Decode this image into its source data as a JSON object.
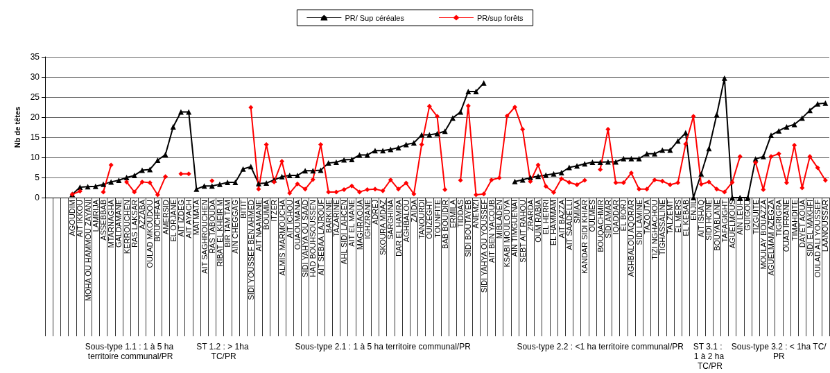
{
  "chart_data": {
    "type": "line",
    "ylabel": "Nb de têtes",
    "categories": [
      null,
      null,
      null,
      "AGOUDIM",
      "AIT IKKOU",
      "MOHA OU HAMMOU ZAYANI",
      "LAMRIJA",
      "ASSEBBAB",
      "MTARNAGHA",
      "GALDAMANE",
      "KERROUCHEN",
      "RAS LAKSAR",
      "AZZABA",
      "OULAD MKOUDOU",
      "BOUCHFAA",
      "AMERSID",
      "EL ORJANE",
      "AIT IZDEG",
      "AIT AYACH",
      "MATMATA",
      "AIT SAGHROUCHEN",
      "RAS TABOUDA",
      "RIBAT EL KHEIR M",
      "BIR TAM TAM",
      "AIN CHEGGAG",
      "BITIT",
      "SIDI YOUSSEF BEN AHMED",
      "AIT NAAMANE",
      "BOUMIA",
      "ITZER",
      "ALMIS MARMOUCHA",
      "AIT ICHOU",
      "OUAOUMANA",
      "SIDI YAHYA OU SAAD",
      "HAD BOUHSOUSSEN",
      "AIT SEBAA LAJROUF",
      "BARKINE",
      "TAZARINE",
      "AHL SIDI LAHCEN",
      "AIT EL MANE",
      "MAGHRAOUA",
      "IGHZRANE",
      "ADREJ",
      "SKOURA MDAZ",
      "SARGHINA",
      "DAR EL HAMRA",
      "AGHBALOU",
      "ZAIDA",
      "TANOURDI",
      "OUIZEGHT",
      "TOUNFITE",
      "BAB BOUIDIR",
      "ERMILA",
      "TIDDAS",
      "SIDI BOUTAYEB",
      "ANEMZI",
      "SIDI YAHYA OU YOUSSEF",
      "AIT BEN YACOUB",
      "MIBLADEN",
      "KSABI MOULOUYA",
      "AIN TIMGUENAI",
      "SEBT AIT RAHOU",
      "ZRARDA",
      "OUM RABIA",
      "EL HERRI",
      "EL HAMMAM",
      "AIT BAZZA",
      "AIT SAADELLI",
      "SMIAA",
      "KANDAR SIDI KHIAR",
      "OULMES",
      "BOUQACHMIR",
      "SIDI AMAR",
      "IQADDAR",
      "EL BORJ",
      "AGHBALOU AQORAR",
      "SIDI LAMINE",
      "TAZOUTA",
      "TIZI NGHACHOU",
      "TIGHASSALINE",
      "TALZEMT",
      "EL MERS",
      "EL KEBAB",
      "ENJIL",
      "AIT ISHAQ",
      "SIDI HCINE",
      "BOUYABLANE",
      "TAFAGIGHT",
      "AGUELMOUS",
      "AIN LEUH",
      "GUIGOU",
      "TIZGUITE",
      "MOULAY BOUAZZA",
      "AGUELMAM AZEGZA",
      "TIGRIGRA",
      "OUAD IFRANE",
      "TIMAHDITE",
      "DAYET AOUA",
      "SIDI EL MAKHFI",
      "OULAD ALI YOUSSEF",
      "LAANOUSSAR"
    ],
    "series": [
      {
        "name": "PR/ Sup céréales",
        "color": "#000000",
        "marker": "triangle",
        "values": [
          null,
          null,
          null,
          0.8,
          2.6,
          2.7,
          2.8,
          3.3,
          3.9,
          4.3,
          5.0,
          5.5,
          6.8,
          7.0,
          9.3,
          10.7,
          17.6,
          21.3,
          21.3,
          2.1,
          2.9,
          2.9,
          3.3,
          3.8,
          3.8,
          7.1,
          7.7,
          3.5,
          3.6,
          4.4,
          5.2,
          5.5,
          5.5,
          6.7,
          6.7,
          6.8,
          8.6,
          8.8,
          9.4,
          9.5,
          10.6,
          10.6,
          11.7,
          11.7,
          12.0,
          12.4,
          13.2,
          13.6,
          15.6,
          15.6,
          15.9,
          16.5,
          19.8,
          21.3,
          26.4,
          26.4,
          28.5,
          null,
          null,
          null,
          4.0,
          4.4,
          5.0,
          5.3,
          5.6,
          5.9,
          6.2,
          7.5,
          7.9,
          8.4,
          8.8,
          8.8,
          8.9,
          8.9,
          9.7,
          9.7,
          9.7,
          10.9,
          10.9,
          11.8,
          11.8,
          14.1,
          16.1,
          0,
          5.9,
          12.2,
          20.6,
          29.7,
          0,
          0,
          0,
          9.6,
          10.2,
          15.5,
          16.6,
          17.6,
          18.2,
          19.8,
          21.7,
          23.3,
          23.5
        ]
      },
      {
        "name": "PR/sup forêts",
        "color": "#ff0000",
        "marker": "diamond",
        "values": [
          null,
          null,
          null,
          0.8,
          1.6,
          null,
          null,
          1.4,
          8.1,
          null,
          3.9,
          1.4,
          3.9,
          3.7,
          0.7,
          5.2,
          null,
          5.9,
          5.9,
          null,
          null,
          4.2,
          null,
          null,
          null,
          null,
          22.4,
          2.1,
          13.2,
          3.9,
          9.0,
          1.1,
          3.4,
          2.1,
          4.5,
          13.2,
          1.4,
          1.4,
          2.0,
          2.9,
          1.4,
          2.0,
          2.1,
          1.7,
          4.4,
          2.1,
          3.6,
          0.9,
          13.2,
          22.7,
          20.2,
          2.0,
          null,
          4.3,
          22.8,
          0.7,
          0.9,
          4.4,
          4.9,
          20.3,
          22.5,
          17.0,
          4.0,
          8.1,
          2.8,
          1.3,
          4.7,
          3.8,
          3.2,
          4.3,
          null,
          7.0,
          17.0,
          3.7,
          3.7,
          6.1,
          2.1,
          2.1,
          4.4,
          4.1,
          3.2,
          3.7,
          13.3,
          20.2,
          3.3,
          3.9,
          2.1,
          1.4,
          3.8,
          10.2,
          null,
          8.7,
          2.0,
          10.2,
          10.9,
          3.7,
          13.0,
          2.4,
          10.2,
          7.4,
          4.3
        ]
      }
    ],
    "ylim": [
      0,
      35
    ],
    "yticks": [
      0,
      5,
      10,
      15,
      20,
      25,
      30,
      35
    ],
    "grid": "y",
    "legend": "top",
    "annotations": [
      "Sous-type 1.1 : 1 à 5 ha territoire communal/PR",
      "ST 1.2 : > 1ha TC/PR",
      "Sous-type 2.1 : 1 à 5 ha territoire communal/PR",
      "Sous-type 2.2 : <1 ha territoire communal/PR",
      "ST 3.1 : 1 à 2 ha TC/PR",
      "Sous-type 3.2 : < 1ha TC/PR"
    ]
  }
}
